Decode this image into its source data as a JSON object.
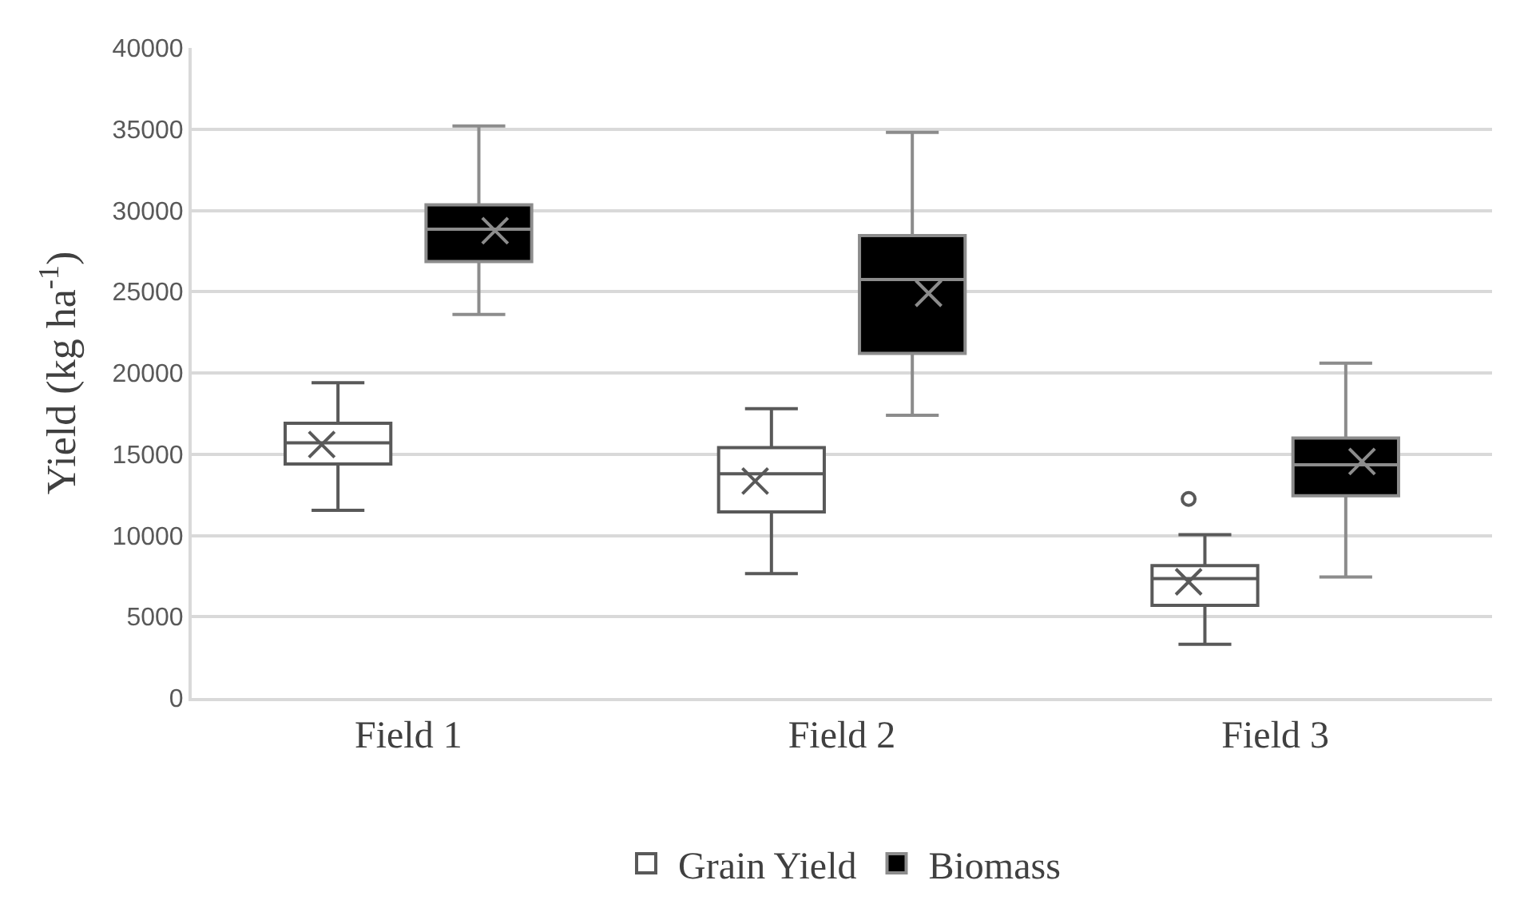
{
  "chart_data": {
    "type": "box",
    "ylabel": "Yield (kg ha$^{-1}$)",
    "categories": [
      "Field 1",
      "Field 2",
      "Field 3"
    ],
    "ylim": [
      0,
      40000
    ],
    "yticks": [
      0,
      5000,
      10000,
      15000,
      20000,
      25000,
      30000,
      35000,
      40000
    ],
    "grid": "y",
    "legend": "bottom",
    "series": [
      {
        "name": "Grain Yield",
        "color": "#ffffff",
        "boxes": [
          {
            "low": 11550,
            "q1": 14400,
            "median": 15700,
            "q3": 16900,
            "high": 19400,
            "mean": 15600
          },
          {
            "low": 7650,
            "q1": 11450,
            "median": 13800,
            "q3": 15400,
            "high": 17800,
            "mean": 13350
          },
          {
            "low": 3300,
            "q1": 5700,
            "median": 7350,
            "q3": 8150,
            "high": 10050,
            "mean": 7150,
            "outliers": [
              12250
            ]
          }
        ]
      },
      {
        "name": "Biomass",
        "color": "#000000",
        "boxes": [
          {
            "low": 23600,
            "q1": 26850,
            "median": 28850,
            "q3": 30350,
            "high": 35200,
            "mean": 28750
          },
          {
            "low": 17400,
            "q1": 21200,
            "median": 25750,
            "q3": 28450,
            "high": 34800,
            "mean": 24900
          },
          {
            "low": 7450,
            "q1": 12450,
            "median": 14350,
            "q3": 16000,
            "high": 20600,
            "mean": 14550
          }
        ]
      }
    ]
  }
}
